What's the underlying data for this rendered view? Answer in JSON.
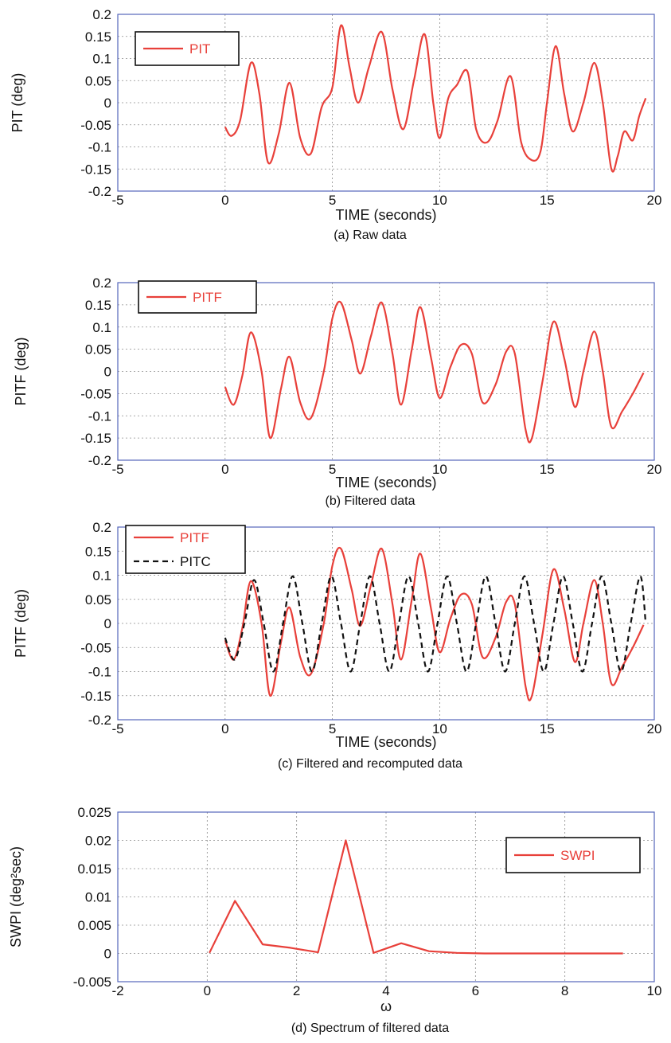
{
  "chart_data": [
    {
      "type": "line",
      "caption": "(a) Raw data",
      "xlabel": "TIME (seconds)",
      "ylabel": "PIT (deg)",
      "xlim": [
        -5,
        20
      ],
      "ylim": [
        -0.2,
        0.2
      ],
      "xticks": [
        "-5",
        "0",
        "5",
        "10",
        "15",
        "20"
      ],
      "yticks": [
        "0.2",
        "0.15",
        "0.1",
        "0.05",
        "0",
        "-0.05",
        "-0.1",
        "-0.15",
        "-0.2"
      ],
      "grid": true,
      "legend_position": "top-left",
      "series": [
        {
          "name": "PIT",
          "color": "#e8403a",
          "style": "solid",
          "x": [
            0,
            0.3,
            0.7,
            1.2,
            1.6,
            2.0,
            2.5,
            3.0,
            3.5,
            4.0,
            4.5,
            5.0,
            5.4,
            5.8,
            6.2,
            6.7,
            7.3,
            7.8,
            8.3,
            8.8,
            9.3,
            9.7,
            10.0,
            10.4,
            10.8,
            11.3,
            11.7,
            12.2,
            12.7,
            13.3,
            13.8,
            14.3,
            14.7,
            15.0,
            15.4,
            15.8,
            16.2,
            16.7,
            17.2,
            17.6,
            18.0,
            18.3,
            18.6,
            19.0,
            19.3,
            19.6
          ],
          "y": [
            -0.055,
            -0.075,
            -0.04,
            0.09,
            0.02,
            -0.135,
            -0.07,
            0.045,
            -0.08,
            -0.115,
            -0.01,
            0.035,
            0.175,
            0.08,
            0.0,
            0.08,
            0.16,
            0.03,
            -0.06,
            0.05,
            0.155,
            0.0,
            -0.08,
            0.01,
            0.04,
            0.07,
            -0.06,
            -0.09,
            -0.04,
            0.06,
            -0.09,
            -0.13,
            -0.11,
            0.0,
            0.128,
            0.02,
            -0.065,
            0.0,
            0.09,
            0.0,
            -0.15,
            -0.12,
            -0.065,
            -0.085,
            -0.03,
            0.01
          ]
        }
      ]
    },
    {
      "type": "line",
      "caption": "(b) Filtered data",
      "xlabel": "TIME (seconds)",
      "ylabel": "PITF (deg)",
      "xlim": [
        -5,
        20
      ],
      "ylim": [
        -0.2,
        0.2
      ],
      "xticks": [
        "-5",
        "0",
        "5",
        "10",
        "15",
        "20"
      ],
      "yticks": [
        "0.2",
        "0.15",
        "0.1",
        "0.05",
        "0",
        "-0.05",
        "-0.1",
        "-0.15",
        "-0.2"
      ],
      "grid": true,
      "legend_position": "top-left",
      "series": [
        {
          "name": "PITF",
          "color": "#e8403a",
          "style": "solid",
          "x": [
            0,
            0.4,
            0.8,
            1.2,
            1.7,
            2.1,
            2.6,
            3.0,
            3.5,
            4.0,
            4.6,
            5.0,
            5.4,
            5.9,
            6.3,
            6.8,
            7.3,
            7.8,
            8.2,
            8.7,
            9.1,
            9.6,
            10.0,
            10.5,
            11.0,
            11.5,
            12.0,
            12.6,
            13.1,
            13.5,
            14.0,
            14.3,
            14.8,
            15.3,
            15.8,
            16.3,
            16.7,
            17.2,
            17.6,
            18.0,
            18.5,
            19.0,
            19.5
          ],
          "y": [
            -0.035,
            -0.075,
            -0.01,
            0.088,
            0.0,
            -0.15,
            -0.04,
            0.033,
            -0.07,
            -0.105,
            0.0,
            0.12,
            0.155,
            0.07,
            -0.005,
            0.08,
            0.155,
            0.04,
            -0.075,
            0.05,
            0.145,
            0.03,
            -0.06,
            0.01,
            0.06,
            0.04,
            -0.07,
            -0.03,
            0.045,
            0.04,
            -0.13,
            -0.15,
            -0.02,
            0.112,
            0.03,
            -0.08,
            0.0,
            0.09,
            0.0,
            -0.125,
            -0.09,
            -0.05,
            -0.003
          ]
        }
      ]
    },
    {
      "type": "line",
      "caption": "(c) Filtered and recomputed data",
      "xlabel": "TIME (seconds)",
      "ylabel": "PITF (deg)",
      "xlim": [
        -5,
        20
      ],
      "ylim": [
        -0.2,
        0.2
      ],
      "xticks": [
        "-5",
        "0",
        "5",
        "10",
        "15",
        "20"
      ],
      "yticks": [
        "0.2",
        "0.15",
        "0.1",
        "0.05",
        "0",
        "-0.05",
        "-0.1",
        "-0.15",
        "-0.2"
      ],
      "grid": true,
      "legend_position": "top-left",
      "series": [
        {
          "name": "PITF",
          "color": "#e8403a",
          "style": "solid",
          "x": [
            0,
            0.4,
            0.8,
            1.2,
            1.7,
            2.1,
            2.6,
            3.0,
            3.5,
            4.0,
            4.6,
            5.0,
            5.4,
            5.9,
            6.3,
            6.8,
            7.3,
            7.8,
            8.2,
            8.7,
            9.1,
            9.6,
            10.0,
            10.5,
            11.0,
            11.5,
            12.0,
            12.6,
            13.1,
            13.5,
            14.0,
            14.3,
            14.8,
            15.3,
            15.8,
            16.3,
            16.7,
            17.2,
            17.6,
            18.0,
            18.5,
            19.0,
            19.5
          ],
          "y": [
            -0.035,
            -0.075,
            -0.01,
            0.088,
            0.0,
            -0.15,
            -0.04,
            0.033,
            -0.07,
            -0.105,
            0.0,
            0.12,
            0.155,
            0.07,
            -0.005,
            0.08,
            0.155,
            0.04,
            -0.075,
            0.05,
            0.145,
            0.03,
            -0.06,
            0.01,
            0.06,
            0.04,
            -0.07,
            -0.03,
            0.045,
            0.04,
            -0.13,
            -0.15,
            -0.02,
            0.112,
            0.03,
            -0.08,
            0.0,
            0.09,
            0.0,
            -0.125,
            -0.09,
            -0.05,
            -0.003
          ]
        },
        {
          "name": "PITC",
          "color": "#111111",
          "style": "dashed",
          "x": [
            0,
            0.45,
            0.9,
            1.35,
            1.8,
            2.25,
            2.7,
            3.15,
            3.6,
            4.05,
            4.5,
            4.95,
            5.4,
            5.85,
            6.3,
            6.75,
            7.2,
            7.65,
            8.1,
            8.55,
            9.0,
            9.45,
            9.9,
            10.35,
            10.8,
            11.25,
            11.7,
            12.15,
            12.6,
            13.05,
            13.5,
            13.95,
            14.4,
            14.85,
            15.3,
            15.75,
            16.2,
            16.65,
            17.1,
            17.55,
            18.0,
            18.45,
            18.9,
            19.35,
            19.6
          ],
          "y": [
            -0.03,
            -0.075,
            0.0,
            0.09,
            0.0,
            -0.1,
            0.0,
            0.098,
            0.0,
            -0.1,
            0.0,
            0.098,
            0.0,
            -0.1,
            0.0,
            0.098,
            0.0,
            -0.1,
            0.0,
            0.098,
            0.0,
            -0.1,
            0.0,
            0.098,
            0.0,
            -0.1,
            0.0,
            0.098,
            0.0,
            -0.1,
            0.0,
            0.098,
            0.0,
            -0.1,
            0.0,
            0.098,
            0.0,
            -0.1,
            0.0,
            0.098,
            0.0,
            -0.1,
            0.0,
            0.098,
            0.0
          ]
        }
      ]
    },
    {
      "type": "line",
      "caption": "(d) Spectrum of filtered data",
      "xlabel": "ω",
      "ylabel": "SWPI (deg²sec)",
      "xlim": [
        -2,
        10
      ],
      "ylim": [
        -0.005,
        0.025
      ],
      "xticks": [
        "-2",
        "0",
        "2",
        "4",
        "6",
        "8",
        "10"
      ],
      "yticks": [
        "0.025",
        "0.02",
        "0.015",
        "0.01",
        "0.005",
        "0",
        "-0.005"
      ],
      "grid": true,
      "legend_position": "top-right",
      "series": [
        {
          "name": "SWPI",
          "color": "#e8403a",
          "style": "solid",
          "x": [
            0.05,
            0.62,
            1.24,
            1.86,
            2.48,
            3.1,
            3.72,
            4.34,
            4.96,
            5.58,
            6.2,
            6.82,
            7.44,
            8.06,
            8.68,
            9.3
          ],
          "y": [
            0.0001,
            0.0093,
            0.0016,
            0.001,
            0.0002,
            0.02,
            0.0001,
            0.0018,
            0.0004,
            0.0001,
            0.0,
            0.0,
            0.0,
            0.0,
            0.0,
            0.0
          ]
        }
      ]
    }
  ]
}
